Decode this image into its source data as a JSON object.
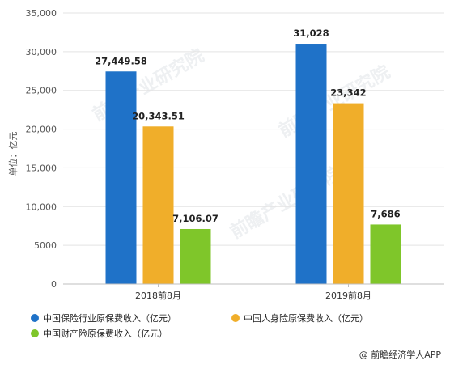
{
  "chart_data": {
    "type": "bar",
    "categories": [
      "2018前8月",
      "2019前8月"
    ],
    "series": [
      {
        "name": "中国保险行业原保费收入（亿元）",
        "values": [
          27449.58,
          31028
        ],
        "labels": [
          "27,449.58",
          "31,028"
        ],
        "color": "#1f72c8"
      },
      {
        "name": "中国人身险原保费收入（亿元）",
        "values": [
          20343.51,
          23342
        ],
        "labels": [
          "20,343.51",
          "23,342"
        ],
        "color": "#f0ae2a"
      },
      {
        "name": "中国财产险原保费收入（亿元）",
        "values": [
          7106.07,
          7686
        ],
        "labels": [
          "7,106.07",
          "7,686"
        ],
        "color": "#7fc62a"
      }
    ],
    "ylabel": "单位：亿元",
    "ylim": [
      0,
      35000
    ],
    "yticks": [
      {
        "value": 0,
        "label": "0"
      },
      {
        "value": 5000,
        "label": "5000"
      },
      {
        "value": 10000,
        "label": "10,000"
      },
      {
        "value": 15000,
        "label": "15,000"
      },
      {
        "value": 20000,
        "label": "20,000"
      },
      {
        "value": 25000,
        "label": "25,000"
      },
      {
        "value": 30000,
        "label": "30,000"
      },
      {
        "value": 35000,
        "label": "35,000"
      }
    ],
    "grid": true,
    "legend_position": "bottom"
  },
  "source": "@ 前瞻经济学人APP",
  "watermark": "前瞻产业研究院"
}
